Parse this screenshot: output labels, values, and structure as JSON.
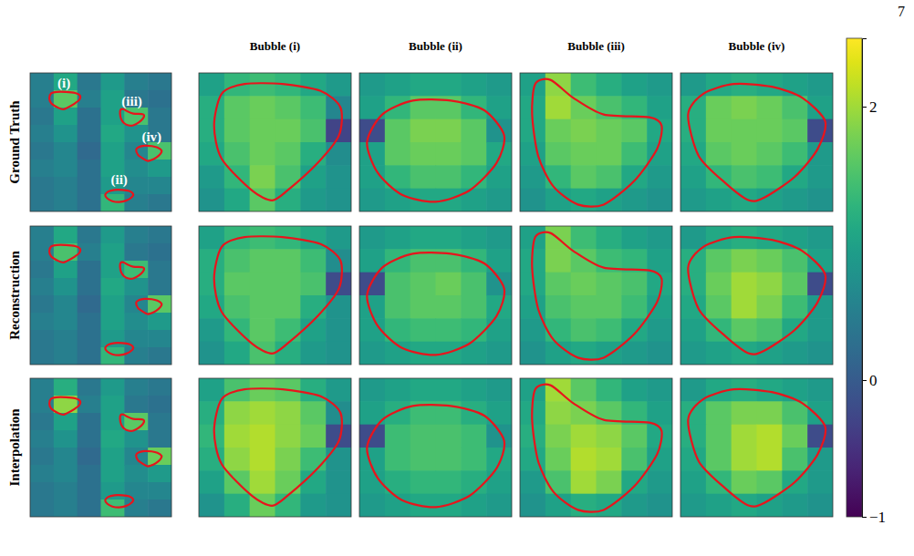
{
  "chart_data": {
    "type": "heatmap",
    "page_number": "7",
    "tick_labels": false,
    "row_labels": [
      "Ground Truth",
      "Reconstruction",
      "Interpolation"
    ],
    "column_titles": [
      "Bubble (i)",
      "Bubble (ii)",
      "Bubble (iii)",
      "Bubble (iv)"
    ],
    "bubble_labels": [
      "(i)",
      "(ii)",
      "(iii)",
      "(iv)"
    ],
    "colorbar": {
      "range": [
        -1,
        2.5
      ],
      "ticks": [
        {
          "value": -1,
          "label": "−1"
        },
        0,
        2
      ]
    },
    "contours": [
      {
        "x": [
          0.1,
          0.15,
          0.3,
          0.55,
          0.8,
          0.93,
          0.92,
          0.78,
          0.58,
          0.48,
          0.35,
          0.15
        ],
        "y": [
          0.38,
          0.15,
          0.08,
          0.08,
          0.13,
          0.25,
          0.45,
          0.65,
          0.85,
          0.92,
          0.85,
          0.62
        ]
      },
      {
        "x": [
          0.05,
          0.15,
          0.35,
          0.6,
          0.82,
          0.95,
          0.9,
          0.72,
          0.5,
          0.28,
          0.12
        ],
        "y": [
          0.5,
          0.3,
          0.2,
          0.2,
          0.27,
          0.45,
          0.65,
          0.85,
          0.93,
          0.88,
          0.72
        ]
      },
      {
        "x": [
          0.1,
          0.2,
          0.35,
          0.55,
          0.85,
          0.93,
          0.9,
          0.75,
          0.55,
          0.38,
          0.22,
          0.12,
          0.08
        ],
        "y": [
          0.08,
          0.05,
          0.18,
          0.3,
          0.32,
          0.38,
          0.55,
          0.78,
          0.95,
          0.95,
          0.82,
          0.6,
          0.3
        ]
      },
      {
        "x": [
          0.05,
          0.15,
          0.35,
          0.6,
          0.8,
          0.95,
          0.9,
          0.75,
          0.55,
          0.45,
          0.3,
          0.12
        ],
        "y": [
          0.3,
          0.15,
          0.08,
          0.1,
          0.18,
          0.35,
          0.55,
          0.75,
          0.9,
          0.92,
          0.8,
          0.6
        ]
      }
    ],
    "overview_boxes": [
      {
        "cx": 0.24,
        "cy": 0.2,
        "w": 0.26,
        "h": 0.15
      },
      {
        "cx": 0.63,
        "cy": 0.88,
        "w": 0.22,
        "h": 0.12
      },
      {
        "cx": 0.72,
        "cy": 0.32,
        "w": 0.2,
        "h": 0.13
      },
      {
        "cx": 0.84,
        "cy": 0.58,
        "w": 0.2,
        "h": 0.13
      }
    ],
    "overview_cells": [
      [
        [
          0.5,
          1.1,
          0.4,
          0.9,
          0.5,
          0.4
        ],
        [
          0.5,
          1.6,
          0.5,
          1.0,
          0.4,
          0.3
        ],
        [
          0.4,
          1.0,
          0.3,
          1.0,
          1.5,
          0.4
        ],
        [
          0.5,
          0.8,
          0.3,
          1.1,
          0.8,
          0.4
        ],
        [
          0.4,
          0.6,
          0.2,
          1.0,
          0.6,
          1.5
        ],
        [
          0.5,
          0.6,
          0.3,
          1.0,
          0.7,
          0.9
        ],
        [
          0.4,
          0.5,
          0.3,
          0.9,
          0.6,
          0.6
        ],
        [
          0.4,
          0.5,
          0.3,
          1.3,
          0.5,
          0.4
        ]
      ],
      [
        [
          0.5,
          1.1,
          0.4,
          0.9,
          0.5,
          0.4
        ],
        [
          0.5,
          1.5,
          0.5,
          1.0,
          0.4,
          0.3
        ],
        [
          0.4,
          1.0,
          0.3,
          1.0,
          1.4,
          0.4
        ],
        [
          0.5,
          0.8,
          0.3,
          1.1,
          0.8,
          0.4
        ],
        [
          0.4,
          0.6,
          0.2,
          1.0,
          0.6,
          1.6
        ],
        [
          0.5,
          0.6,
          0.3,
          1.0,
          0.7,
          0.9
        ],
        [
          0.4,
          0.5,
          0.3,
          0.9,
          0.6,
          0.6
        ],
        [
          0.4,
          0.5,
          0.3,
          1.3,
          0.5,
          0.4
        ]
      ],
      [
        [
          0.5,
          1.2,
          0.4,
          0.9,
          0.5,
          0.4
        ],
        [
          0.5,
          1.9,
          0.5,
          1.0,
          0.4,
          0.3
        ],
        [
          0.4,
          1.0,
          0.3,
          1.0,
          1.6,
          0.4
        ],
        [
          0.5,
          0.8,
          0.3,
          1.1,
          0.8,
          0.4
        ],
        [
          0.4,
          0.6,
          0.2,
          1.0,
          0.6,
          1.7
        ],
        [
          0.5,
          0.6,
          0.3,
          1.0,
          0.7,
          0.9
        ],
        [
          0.4,
          0.5,
          0.3,
          0.9,
          0.6,
          0.6
        ],
        [
          0.4,
          0.5,
          0.3,
          1.4,
          0.5,
          0.4
        ]
      ]
    ],
    "zoom_cells": [
      [
        [
          [
            1.0,
            1.3,
            1.4,
            1.3,
            1.1,
            0.9
          ],
          [
            1.2,
            1.6,
            1.7,
            1.6,
            1.4,
            0.6
          ],
          [
            1.2,
            1.6,
            1.7,
            1.7,
            1.5,
            -0.3
          ],
          [
            1.1,
            1.5,
            1.7,
            1.6,
            1.2,
            0.7
          ],
          [
            0.9,
            1.3,
            1.8,
            1.5,
            1.0,
            0.8
          ],
          [
            0.8,
            1.1,
            1.6,
            1.2,
            0.9,
            0.8
          ]
        ],
        [
          [
            0.9,
            1.0,
            1.1,
            1.1,
            1.0,
            0.9
          ],
          [
            1.0,
            1.3,
            1.6,
            1.6,
            1.3,
            1.0
          ],
          [
            -0.2,
            1.6,
            1.8,
            1.8,
            1.6,
            0.8
          ],
          [
            1.0,
            1.6,
            1.7,
            1.7,
            1.6,
            1.1
          ],
          [
            1.0,
            1.3,
            1.5,
            1.5,
            1.3,
            1.0
          ],
          [
            0.9,
            1.0,
            1.1,
            1.1,
            1.0,
            0.9
          ]
        ],
        [
          [
            1.0,
            1.9,
            1.4,
            1.2,
            1.0,
            0.9
          ],
          [
            1.1,
            2.0,
            1.7,
            1.5,
            1.3,
            1.0
          ],
          [
            1.1,
            1.7,
            1.8,
            1.7,
            1.6,
            1.1
          ],
          [
            1.0,
            1.6,
            1.7,
            1.7,
            1.4,
            1.0
          ],
          [
            0.9,
            1.3,
            1.6,
            1.5,
            1.1,
            0.9
          ],
          [
            0.8,
            1.0,
            1.1,
            1.0,
            0.9,
            0.8
          ]
        ],
        [
          [
            0.9,
            1.1,
            1.2,
            1.1,
            1.0,
            0.9
          ],
          [
            1.2,
            1.7,
            1.8,
            1.7,
            1.5,
            1.0
          ],
          [
            1.2,
            1.7,
            1.7,
            1.7,
            1.6,
            -0.2
          ],
          [
            1.1,
            1.6,
            1.7,
            1.6,
            1.4,
            0.9
          ],
          [
            1.0,
            1.3,
            1.5,
            1.4,
            1.1,
            0.9
          ],
          [
            0.9,
            1.0,
            1.1,
            1.0,
            0.9,
            0.8
          ]
        ]
      ],
      [
        [
          [
            1.0,
            1.3,
            1.4,
            1.3,
            1.1,
            0.9
          ],
          [
            1.2,
            1.5,
            1.6,
            1.6,
            1.4,
            0.7
          ],
          [
            1.2,
            1.6,
            1.6,
            1.6,
            1.5,
            -0.2
          ],
          [
            1.1,
            1.5,
            1.6,
            1.6,
            1.2,
            0.8
          ],
          [
            0.9,
            1.3,
            1.6,
            1.4,
            1.0,
            0.8
          ],
          [
            0.8,
            1.1,
            1.5,
            1.2,
            0.9,
            0.8
          ]
        ],
        [
          [
            0.9,
            1.0,
            1.1,
            1.1,
            1.0,
            0.9
          ],
          [
            1.0,
            1.3,
            1.5,
            1.5,
            1.3,
            1.0
          ],
          [
            -0.2,
            1.5,
            1.6,
            1.7,
            1.5,
            0.8
          ],
          [
            1.0,
            1.5,
            1.6,
            1.6,
            1.5,
            1.1
          ],
          [
            1.0,
            1.3,
            1.4,
            1.4,
            1.3,
            1.0
          ],
          [
            0.9,
            1.0,
            1.1,
            1.1,
            1.0,
            0.9
          ]
        ],
        [
          [
            1.0,
            1.8,
            1.4,
            1.2,
            1.0,
            0.9
          ],
          [
            1.1,
            1.8,
            1.6,
            1.4,
            1.3,
            1.0
          ],
          [
            1.1,
            1.6,
            1.7,
            1.6,
            1.5,
            1.1
          ],
          [
            1.0,
            1.5,
            1.6,
            1.6,
            1.4,
            1.0
          ],
          [
            0.9,
            1.3,
            1.5,
            1.4,
            1.1,
            0.9
          ],
          [
            0.8,
            1.0,
            1.1,
            1.0,
            0.9,
            0.8
          ]
        ],
        [
          [
            0.9,
            1.1,
            1.2,
            1.1,
            1.0,
            0.9
          ],
          [
            1.2,
            1.6,
            1.8,
            1.7,
            1.5,
            1.0
          ],
          [
            1.2,
            1.7,
            2.0,
            1.9,
            1.6,
            -0.2
          ],
          [
            1.1,
            1.6,
            2.0,
            1.8,
            1.4,
            0.9
          ],
          [
            1.0,
            1.3,
            1.6,
            1.5,
            1.1,
            0.9
          ],
          [
            0.9,
            1.0,
            1.1,
            1.0,
            0.9,
            0.8
          ]
        ]
      ],
      [
        [
          [
            1.0,
            1.5,
            1.7,
            1.6,
            1.2,
            0.9
          ],
          [
            1.2,
            1.9,
            2.0,
            1.9,
            1.6,
            0.7
          ],
          [
            1.3,
            2.0,
            2.1,
            1.9,
            1.7,
            -0.2
          ],
          [
            1.2,
            1.9,
            2.1,
            1.8,
            1.4,
            0.8
          ],
          [
            1.0,
            1.6,
            2.0,
            1.7,
            1.1,
            0.8
          ],
          [
            0.8,
            1.2,
            1.7,
            1.3,
            0.9,
            0.8
          ]
        ],
        [
          [
            0.9,
            1.0,
            1.1,
            1.1,
            1.0,
            0.9
          ],
          [
            1.0,
            1.2,
            1.4,
            1.4,
            1.2,
            1.0
          ],
          [
            -0.2,
            1.4,
            1.5,
            1.5,
            1.4,
            0.8
          ],
          [
            1.0,
            1.4,
            1.5,
            1.5,
            1.4,
            1.1
          ],
          [
            1.0,
            1.2,
            1.3,
            1.3,
            1.2,
            1.0
          ],
          [
            0.9,
            1.0,
            1.1,
            1.1,
            1.0,
            0.9
          ]
        ],
        [
          [
            1.0,
            2.0,
            1.6,
            1.3,
            1.0,
            0.9
          ],
          [
            1.1,
            1.9,
            1.8,
            1.6,
            1.3,
            1.0
          ],
          [
            1.2,
            1.8,
            2.0,
            1.9,
            1.6,
            1.1
          ],
          [
            1.1,
            1.7,
            2.1,
            2.0,
            1.5,
            1.0
          ],
          [
            0.9,
            1.5,
            2.0,
            1.8,
            1.1,
            0.9
          ],
          [
            0.8,
            1.0,
            1.2,
            1.1,
            0.9,
            0.8
          ]
        ],
        [
          [
            0.9,
            1.1,
            1.2,
            1.1,
            1.0,
            0.9
          ],
          [
            1.2,
            1.6,
            1.8,
            1.8,
            1.5,
            1.0
          ],
          [
            1.2,
            1.6,
            2.0,
            2.1,
            1.7,
            -0.2
          ],
          [
            1.1,
            1.6,
            2.0,
            2.1,
            1.5,
            0.9
          ],
          [
            1.0,
            1.3,
            1.7,
            1.6,
            1.1,
            0.9
          ],
          [
            0.9,
            1.0,
            1.1,
            1.0,
            0.9,
            0.8
          ]
        ]
      ]
    ]
  }
}
